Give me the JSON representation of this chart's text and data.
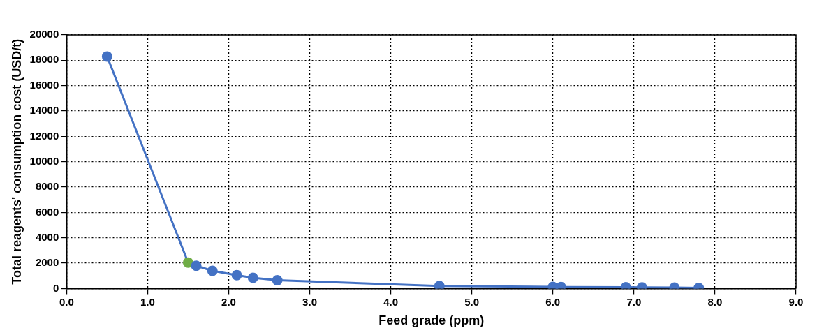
{
  "chart_data": {
    "type": "line",
    "xlabel": "Feed grade (ppm)",
    "ylabel": "Total reagents' consumption cost (USD/t)",
    "x": [
      0.5,
      1.5,
      1.6,
      1.8,
      2.1,
      2.3,
      2.6,
      4.6,
      6.0,
      6.1,
      6.9,
      7.1,
      7.5,
      7.8
    ],
    "series": [
      {
        "color": "#4472c4",
        "colors": [
          "#4472c4",
          "#70ad47",
          "#4472c4",
          "#4472c4",
          "#4472c4",
          "#4472c4",
          "#4472c4",
          "#4472c4",
          "#4472c4",
          "#4472c4",
          "#4472c4",
          "#4472c4",
          "#4472c4",
          "#4472c4"
        ],
        "values": [
          18300,
          2050,
          1800,
          1400,
          1050,
          850,
          650,
          200,
          130,
          120,
          100,
          90,
          80,
          50
        ]
      }
    ],
    "xlim": [
      0,
      9
    ],
    "xticks": [
      {
        "value": 0,
        "label": "0.0"
      },
      {
        "value": 1,
        "label": "1.0"
      },
      {
        "value": 2,
        "label": "2.0"
      },
      {
        "value": 3,
        "label": "3.0"
      },
      {
        "value": 4,
        "label": "4.0"
      },
      {
        "value": 5,
        "label": "5.0"
      },
      {
        "value": 6,
        "label": "6.0"
      },
      {
        "value": 7,
        "label": "7.0"
      },
      {
        "value": 8,
        "label": "8.0"
      },
      {
        "value": 9,
        "label": "9.0"
      }
    ],
    "ylim": [
      0,
      20000
    ],
    "yticks": [
      0,
      2000,
      4000,
      6000,
      8000,
      10000,
      12000,
      14000,
      16000,
      18000,
      20000
    ],
    "grid": true,
    "marker": "circle",
    "line_style": "solid",
    "legend": false
  }
}
